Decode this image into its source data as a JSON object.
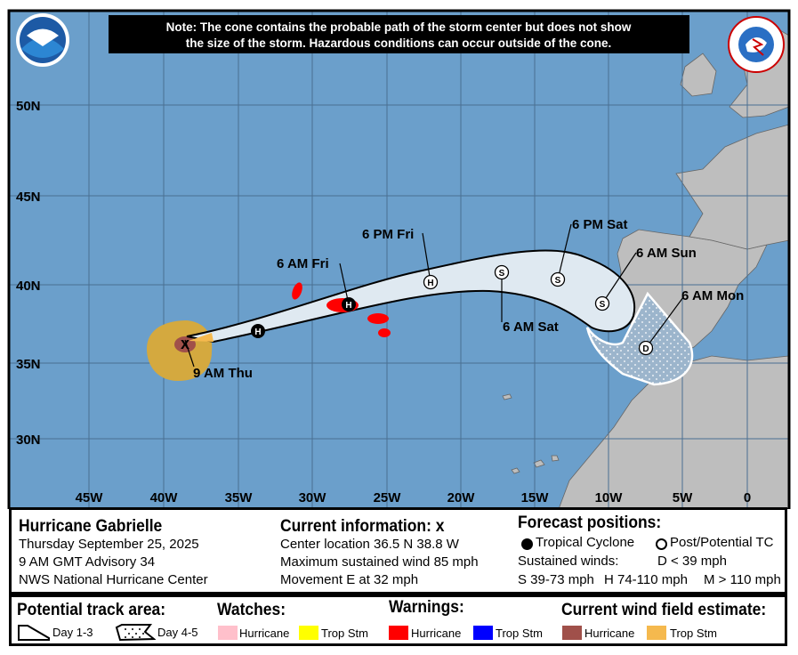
{
  "note": {
    "line1": "Note: The cone contains the probable path of the storm center but does not show",
    "line2": "the size of the storm. Hazardous conditions can occur outside of the cone."
  },
  "logos": {
    "left": "NOAA",
    "right": "NATIONAL WEATHER SERVICE"
  },
  "colors": {
    "ocean": "#6b9fcb",
    "land": "#bebebe",
    "cone": "#dfe9f1",
    "hurricane_warning": "#ff0000",
    "current_hurricane_wind": "#a0504a",
    "current_trop_stm_wind": "#f5b94e",
    "hurricane_watch": "#ffc0cb",
    "trop_stm_watch": "#ffff00",
    "trop_stm_warning": "#0000ff"
  },
  "map": {
    "lat_labels": [
      "50N",
      "45N",
      "40N",
      "35N",
      "30N"
    ],
    "lon_labels": [
      "45W",
      "40W",
      "35W",
      "30W",
      "25W",
      "20W",
      "15W",
      "10W",
      "5W",
      "0"
    ],
    "points": [
      {
        "label": "9 AM Thu",
        "symbol": "x"
      },
      {
        "label": "",
        "symbol": "H"
      },
      {
        "label": "6 AM Fri",
        "symbol": "H"
      },
      {
        "label": "6 PM Fri",
        "symbol": "H"
      },
      {
        "label": "6 AM Sat",
        "symbol": "S"
      },
      {
        "label": "6 PM Sat",
        "symbol": "S"
      },
      {
        "label": "6 AM Sun",
        "symbol": "S"
      },
      {
        "label": "6 AM Mon",
        "symbol": "D"
      }
    ]
  },
  "info": {
    "storm_name": "Hurricane Gabrielle",
    "date": "Thursday September 25, 2025",
    "advisory": "9 AM GMT Advisory 34",
    "center": "NWS National Hurricane Center",
    "current_title": "Current information: ",
    "current_mark": "x",
    "location": "Center location 36.5 N 38.8 W",
    "max_wind": "Maximum sustained wind 85 mph",
    "movement": "Movement E at 32 mph",
    "forecast_title": "Forecast positions:",
    "tropical_cyclone": "Tropical Cyclone",
    "post_potential": "Post/Potential TC",
    "sustained_winds": "Sustained winds:",
    "d_range": "D < 39 mph",
    "s_range": "S 39-73 mph",
    "h_range": "H 74-110 mph",
    "m_range": "M > 110 mph"
  },
  "legend": {
    "track_title": "Potential track area:",
    "day13": "Day 1-3",
    "day45": "Day 4-5",
    "watches_title": "Watches:",
    "warnings_title": "Warnings:",
    "wind_title": "Current wind field estimate:",
    "hurricane": "Hurricane",
    "trop_stm": "Trop Stm"
  }
}
